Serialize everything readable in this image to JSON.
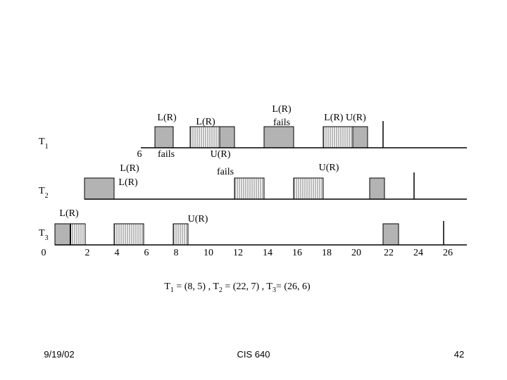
{
  "diagram": {
    "rows": [
      {
        "name": "T",
        "sub": "1"
      },
      {
        "name": "T",
        "sub": "2"
      },
      {
        "name": "T",
        "sub": "3"
      }
    ],
    "axis_labels": [
      "0",
      "2",
      "4",
      "6",
      "8",
      "10",
      "12",
      "14",
      "16",
      "18",
      "20",
      "22",
      "24",
      "26"
    ],
    "annotations": [
      "L(R)",
      "L(R)",
      "L(R)",
      "fails",
      "L(R)  U(R)",
      "6",
      "fails",
      "U(R)",
      "L(R)",
      "fails",
      "L(R)",
      "U(R)",
      "L(R)",
      "U(R)"
    ],
    "caption": [
      {
        "name": "T",
        "sub": "1",
        "rest": " = (8, 5) , "
      },
      {
        "name": "T",
        "sub": "2",
        "rest": " = (22, 7) , "
      },
      {
        "name": "T",
        "sub": "3",
        "rest": "= (26, 6)"
      }
    ]
  },
  "footer": {
    "date": "9/19/02",
    "course": "CIS 640",
    "page": "42"
  }
}
